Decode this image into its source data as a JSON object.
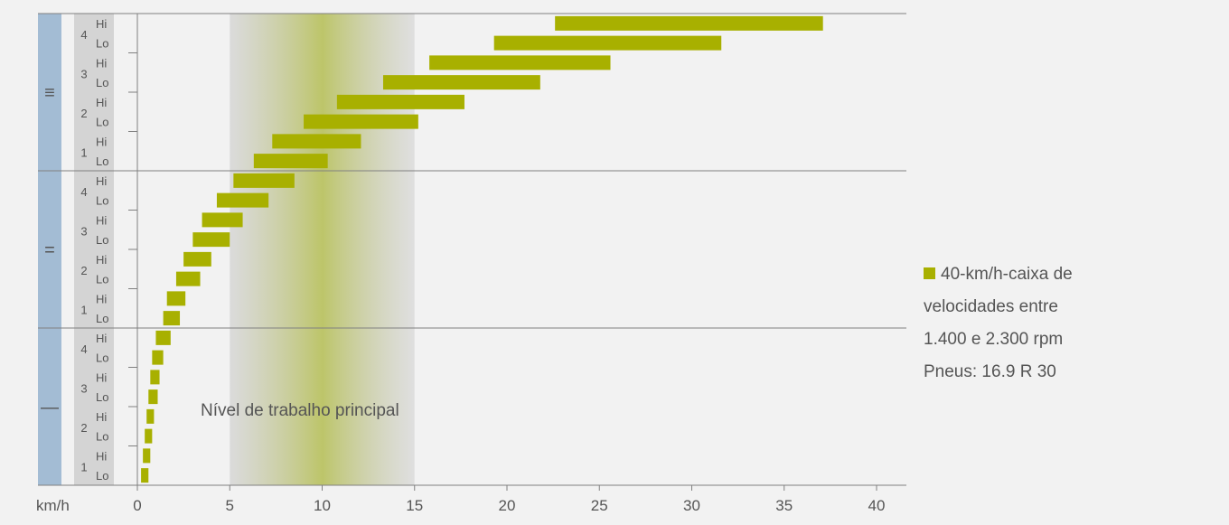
{
  "chart_data": {
    "type": "bar",
    "subtype": "floating-horizontal-range",
    "x_unit_label": "km/h",
    "xlim": [
      0,
      42
    ],
    "x_ticks": [
      0,
      5,
      10,
      15,
      20,
      25,
      30,
      35,
      40
    ],
    "highlight_band": {
      "label": "Nível de trabalho principal",
      "range": [
        5,
        15
      ],
      "peak": 10
    },
    "groups": [
      {
        "symbol": "≡",
        "gears": [
          {
            "gear": "4",
            "rows": [
              {
                "label": "Hi",
                "range": [
                  22.6,
                  37.1
                ]
              },
              {
                "label": "Lo",
                "range": [
                  19.3,
                  31.6
                ]
              }
            ]
          },
          {
            "gear": "3",
            "rows": [
              {
                "label": "Hi",
                "range": [
                  15.8,
                  25.6
                ]
              },
              {
                "label": "Lo",
                "range": [
                  13.3,
                  21.8
                ]
              }
            ]
          },
          {
            "gear": "2",
            "rows": [
              {
                "label": "Hi",
                "range": [
                  10.8,
                  17.7
                ]
              },
              {
                "label": "Lo",
                "range": [
                  9.0,
                  15.2
                ]
              }
            ]
          },
          {
            "gear": "1",
            "rows": [
              {
                "label": "Hi",
                "range": [
                  7.3,
                  12.1
                ]
              },
              {
                "label": "Lo",
                "range": [
                  6.3,
                  10.3
                ]
              }
            ]
          }
        ]
      },
      {
        "symbol": "=",
        "gears": [
          {
            "gear": "4",
            "rows": [
              {
                "label": "Hi",
                "range": [
                  5.2,
                  8.5
                ]
              },
              {
                "label": "Lo",
                "range": [
                  4.3,
                  7.1
                ]
              }
            ]
          },
          {
            "gear": "3",
            "rows": [
              {
                "label": "Hi",
                "range": [
                  3.5,
                  5.7
                ]
              },
              {
                "label": "Lo",
                "range": [
                  3.0,
                  5.0
                ]
              }
            ]
          },
          {
            "gear": "2",
            "rows": [
              {
                "label": "Hi",
                "range": [
                  2.5,
                  4.0
                ]
              },
              {
                "label": "Lo",
                "range": [
                  2.1,
                  3.4
                ]
              }
            ]
          },
          {
            "gear": "1",
            "rows": [
              {
                "label": "Hi",
                "range": [
                  1.6,
                  2.6
                ]
              },
              {
                "label": "Lo",
                "range": [
                  1.4,
                  2.3
                ]
              }
            ]
          }
        ]
      },
      {
        "symbol": "—",
        "gears": [
          {
            "gear": "4",
            "rows": [
              {
                "label": "Hi",
                "range": [
                  1.0,
                  1.8
                ]
              },
              {
                "label": "Lo",
                "range": [
                  0.8,
                  1.4
                ]
              }
            ]
          },
          {
            "gear": "3",
            "rows": [
              {
                "label": "Hi",
                "range": [
                  0.7,
                  1.2
                ]
              },
              {
                "label": "Lo",
                "range": [
                  0.6,
                  1.1
                ]
              }
            ]
          },
          {
            "gear": "2",
            "rows": [
              {
                "label": "Hi",
                "range": [
                  0.5,
                  0.9
                ]
              },
              {
                "label": "Lo",
                "range": [
                  0.4,
                  0.8
                ]
              }
            ]
          },
          {
            "gear": "1",
            "rows": [
              {
                "label": "Hi",
                "range": [
                  0.3,
                  0.7
                ]
              },
              {
                "label": "Lo",
                "range": [
                  0.2,
                  0.6
                ]
              }
            ]
          }
        ]
      }
    ],
    "legend": {
      "placement": "right",
      "lines": [
        "40-km/h-caixa de",
        "velocidades entre",
        "1.400 e 2.300 rpm",
        "Pneus: 16.9 R 30"
      ]
    },
    "colors": {
      "bar": "#a8b000",
      "group_column": "#a3bcd4",
      "label_column": "#d4d4d4",
      "band": "#c8c8c8",
      "band_peak": "#b7c05a",
      "separator": "#808080",
      "text": "#555555"
    }
  }
}
